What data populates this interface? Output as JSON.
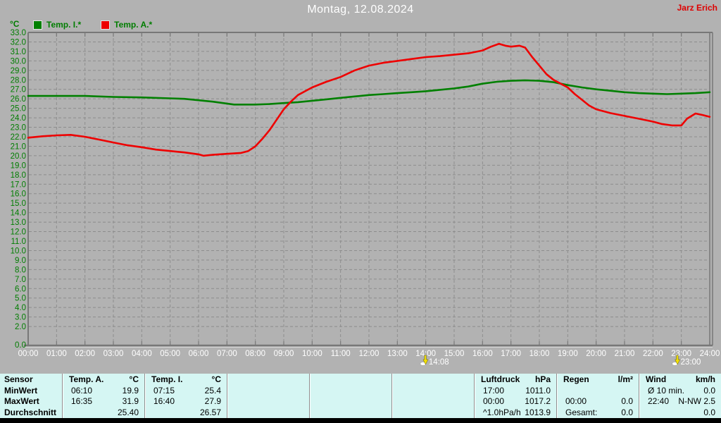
{
  "window": {
    "title": "Montag, 12.08.2024",
    "author": "Jarz Erich"
  },
  "chart_data": {
    "type": "line",
    "title": "Montag, 12.08.2024",
    "y_unit": "°C",
    "grid": true,
    "legend_position": "top-left",
    "y_axis": {
      "min": 0,
      "max": 33,
      "gridline_min": 2,
      "gridline_max": 32,
      "tick_step": 1,
      "baseline_label": "0.0"
    },
    "x_axis": {
      "hours_min": 0,
      "hours_max": 24,
      "tick_labels": [
        "00:00",
        "01:00",
        "02:00",
        "03:00",
        "04:00",
        "05:00",
        "06:00",
        "07:00",
        "08:00",
        "09:00",
        "10:00",
        "11:00",
        "12:00",
        "13:00",
        "14:00",
        "15:00",
        "16:00",
        "17:00",
        "18:00",
        "19:00",
        "20:00",
        "21:00",
        "22:00",
        "23:00",
        "24:00"
      ]
    },
    "series": [
      {
        "name": "Temp. I.*",
        "key": "temp-i",
        "color": "#008000",
        "points": [
          [
            0,
            26.3
          ],
          [
            1,
            26.3
          ],
          [
            2,
            26.3
          ],
          [
            2.5,
            26.25
          ],
          [
            3,
            26.2
          ],
          [
            4,
            26.15
          ],
          [
            5,
            26.05
          ],
          [
            5.5,
            26.0
          ],
          [
            6,
            25.85
          ],
          [
            6.5,
            25.7
          ],
          [
            7,
            25.5
          ],
          [
            7.25,
            25.4
          ],
          [
            7.5,
            25.4
          ],
          [
            8,
            25.4
          ],
          [
            8.5,
            25.45
          ],
          [
            9,
            25.55
          ],
          [
            9.5,
            25.65
          ],
          [
            10,
            25.8
          ],
          [
            10.5,
            25.95
          ],
          [
            11,
            26.1
          ],
          [
            11.5,
            26.25
          ],
          [
            12,
            26.4
          ],
          [
            12.5,
            26.5
          ],
          [
            13,
            26.6
          ],
          [
            13.5,
            26.7
          ],
          [
            14,
            26.8
          ],
          [
            14.5,
            26.95
          ],
          [
            15,
            27.1
          ],
          [
            15.5,
            27.3
          ],
          [
            16,
            27.6
          ],
          [
            16.5,
            27.8
          ],
          [
            17,
            27.9
          ],
          [
            17.5,
            27.95
          ],
          [
            18,
            27.9
          ],
          [
            18.5,
            27.75
          ],
          [
            19,
            27.45
          ],
          [
            19.5,
            27.2
          ],
          [
            20,
            27.0
          ],
          [
            20.5,
            26.85
          ],
          [
            21,
            26.7
          ],
          [
            21.5,
            26.6
          ],
          [
            22,
            26.55
          ],
          [
            22.5,
            26.5
          ],
          [
            23,
            26.55
          ],
          [
            23.5,
            26.6
          ],
          [
            24,
            26.7
          ]
        ]
      },
      {
        "name": "Temp. A.*",
        "key": "temp-a",
        "color": "#ee0000",
        "points": [
          [
            0,
            21.9
          ],
          [
            0.5,
            22.05
          ],
          [
            1,
            22.15
          ],
          [
            1.5,
            22.2
          ],
          [
            2,
            22.0
          ],
          [
            2.5,
            21.7
          ],
          [
            3,
            21.4
          ],
          [
            3.5,
            21.1
          ],
          [
            4,
            20.9
          ],
          [
            4.5,
            20.65
          ],
          [
            5,
            20.5
          ],
          [
            5.5,
            20.35
          ],
          [
            6,
            20.15
          ],
          [
            6.17,
            20.0
          ],
          [
            6.5,
            20.1
          ],
          [
            7,
            20.2
          ],
          [
            7.5,
            20.3
          ],
          [
            7.75,
            20.5
          ],
          [
            8,
            21.0
          ],
          [
            8.25,
            21.8
          ],
          [
            8.5,
            22.7
          ],
          [
            8.75,
            23.8
          ],
          [
            9,
            24.9
          ],
          [
            9.25,
            25.7
          ],
          [
            9.5,
            26.4
          ],
          [
            9.75,
            26.8
          ],
          [
            10,
            27.2
          ],
          [
            10.5,
            27.8
          ],
          [
            11,
            28.3
          ],
          [
            11.5,
            29.0
          ],
          [
            12,
            29.5
          ],
          [
            12.5,
            29.8
          ],
          [
            13,
            30.0
          ],
          [
            13.5,
            30.2
          ],
          [
            14,
            30.4
          ],
          [
            14.5,
            30.5
          ],
          [
            15,
            30.65
          ],
          [
            15.5,
            30.8
          ],
          [
            16,
            31.1
          ],
          [
            16.3,
            31.5
          ],
          [
            16.58,
            31.8
          ],
          [
            16.8,
            31.6
          ],
          [
            17,
            31.5
          ],
          [
            17.3,
            31.6
          ],
          [
            17.5,
            31.4
          ],
          [
            17.75,
            30.4
          ],
          [
            18,
            29.5
          ],
          [
            18.25,
            28.6
          ],
          [
            18.5,
            28.0
          ],
          [
            18.75,
            27.6
          ],
          [
            19,
            27.2
          ],
          [
            19.25,
            26.5
          ],
          [
            19.5,
            25.9
          ],
          [
            19.75,
            25.3
          ],
          [
            20,
            24.9
          ],
          [
            20.5,
            24.5
          ],
          [
            21,
            24.2
          ],
          [
            21.5,
            23.9
          ],
          [
            22,
            23.6
          ],
          [
            22.3,
            23.35
          ],
          [
            22.67,
            23.2
          ],
          [
            23,
            23.2
          ],
          [
            23.2,
            23.9
          ],
          [
            23.5,
            24.45
          ],
          [
            23.75,
            24.3
          ],
          [
            24,
            24.1
          ]
        ]
      }
    ],
    "markers": [
      {
        "label": "14:08",
        "hour": 14.13,
        "icon": "storm-marker-icon"
      },
      {
        "label": "23:00",
        "hour": 23.0,
        "icon": "wind-marker-icon"
      }
    ]
  },
  "table": {
    "row_labels": [
      "Sensor",
      "MinWert",
      "MaxWert",
      "Durchschnitt"
    ],
    "columns": [
      {
        "key": "temp-a",
        "header": "Temp. A.",
        "unit": "°C",
        "rows": [
          [
            "06:10",
            "19.9"
          ],
          [
            "16:35",
            "31.9"
          ],
          [
            "",
            "25.40"
          ]
        ]
      },
      {
        "key": "temp-i",
        "header": "Temp. I.",
        "unit": "°C",
        "rows": [
          [
            "07:15",
            "25.4"
          ],
          [
            "16:40",
            "27.9"
          ],
          [
            "",
            "26.57"
          ]
        ]
      },
      {
        "key": "empty-1",
        "header": "",
        "unit": "",
        "rows": [
          [
            "",
            ""
          ],
          [
            "",
            ""
          ],
          [
            "",
            ""
          ]
        ]
      },
      {
        "key": "empty-2",
        "header": "",
        "unit": "",
        "rows": [
          [
            "",
            ""
          ],
          [
            "",
            ""
          ],
          [
            "",
            ""
          ]
        ]
      },
      {
        "key": "empty-3",
        "header": "",
        "unit": "",
        "rows": [
          [
            "",
            ""
          ],
          [
            "",
            ""
          ],
          [
            "",
            ""
          ]
        ]
      },
      {
        "key": "luftdruck",
        "header": "Luftdruck",
        "unit": "hPa",
        "rows": [
          [
            "17:00",
            "1011.0"
          ],
          [
            "00:00",
            "1017.2"
          ],
          [
            "^1.0hPa/h",
            "1013.9"
          ]
        ]
      },
      {
        "key": "regen",
        "header": "Regen",
        "unit": "l/m²",
        "rows": [
          [
            "",
            ""
          ],
          [
            "00:00",
            "0.0"
          ],
          [
            "Gesamt:",
            "0.0"
          ]
        ]
      },
      {
        "key": "wind",
        "header": "Wind",
        "unit": "km/h",
        "rows": [
          [
            "Ø 10 min.",
            "0.0"
          ],
          [
            "22:40",
            "N-NW 2.5"
          ],
          [
            "",
            "0.0"
          ]
        ]
      }
    ]
  },
  "colors": {
    "background": "#b2b2b2",
    "grid": "#8d8d8d",
    "axis": "#787878",
    "axis_highlight": "#d8d8d8",
    "y_label": "#007d00",
    "x_label": "#ffffff",
    "title_text": "#ffffff",
    "author_text": "#dd0000",
    "marker_yellow": "#f2e100",
    "marker_white": "#ffffff",
    "table_bg": "#d5f6f3",
    "bottom_bar": "#000000"
  }
}
